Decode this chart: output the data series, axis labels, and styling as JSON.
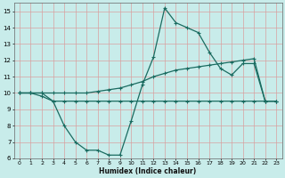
{
  "line1_x": [
    0,
    1,
    2,
    3,
    4,
    5,
    6,
    7,
    8,
    9,
    10,
    11,
    12,
    13,
    14,
    15,
    16,
    17,
    18,
    19,
    20,
    21,
    22,
    23
  ],
  "line1_y": [
    10,
    10,
    9.8,
    9.5,
    8.0,
    7.0,
    6.5,
    6.5,
    6.2,
    6.2,
    8.3,
    10.5,
    12.2,
    15.2,
    14.3,
    14.0,
    13.7,
    12.5,
    11.5,
    11.1,
    11.8,
    11.8,
    9.5,
    9.5
  ],
  "line2_x": [
    0,
    1,
    2,
    3,
    4,
    5,
    6,
    7,
    8,
    9,
    10,
    11,
    12,
    13,
    14,
    15,
    16,
    17,
    18,
    19,
    20,
    21,
    22,
    23
  ],
  "line2_y": [
    10,
    10,
    10,
    9.5,
    9.5,
    9.5,
    9.5,
    9.5,
    9.5,
    9.5,
    9.5,
    9.5,
    9.5,
    9.5,
    9.5,
    9.5,
    9.5,
    9.5,
    9.5,
    9.5,
    9.5,
    9.5,
    9.5,
    9.5
  ],
  "line3_x": [
    0,
    1,
    2,
    3,
    4,
    5,
    6,
    7,
    8,
    9,
    10,
    11,
    12,
    13,
    14,
    15,
    16,
    17,
    18,
    19,
    20,
    21,
    22,
    23
  ],
  "line3_y": [
    10,
    10,
    10,
    10,
    10,
    10,
    10,
    10.1,
    10.2,
    10.3,
    10.5,
    10.7,
    11.0,
    11.2,
    11.4,
    11.5,
    11.6,
    11.7,
    11.8,
    11.9,
    12.0,
    12.1,
    9.5,
    9.5
  ],
  "line_color": "#1a6b60",
  "bg_color": "#c8ecea",
  "grid_color": "#d8a0a0",
  "xlabel": "Humidex (Indice chaleur)",
  "xlim": [
    0,
    23
  ],
  "ylim": [
    6,
    15.5
  ],
  "yticks": [
    6,
    7,
    8,
    9,
    10,
    11,
    12,
    13,
    14,
    15
  ],
  "xticks": [
    0,
    1,
    2,
    3,
    4,
    5,
    6,
    7,
    8,
    9,
    10,
    11,
    12,
    13,
    14,
    15,
    16,
    17,
    18,
    19,
    20,
    21,
    22,
    23
  ],
  "marker": "+",
  "markersize": 3,
  "linewidth": 0.9
}
